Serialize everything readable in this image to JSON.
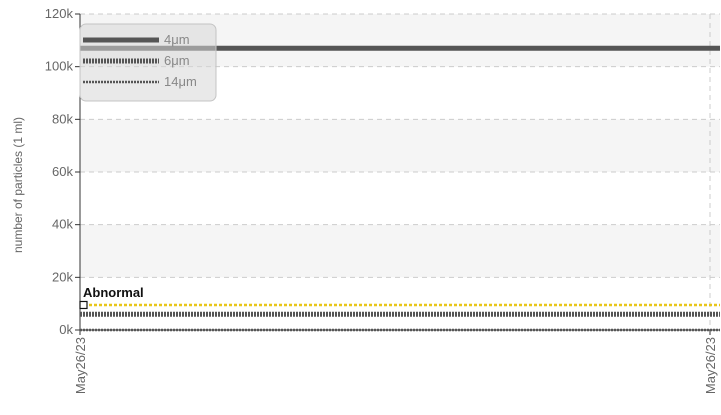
{
  "chart_data": {
    "type": "line",
    "title": "",
    "ylabel": "number of particles (1 ml)",
    "xlabel": "",
    "ylim": [
      0,
      120000
    ],
    "yticks": [
      0,
      20000,
      40000,
      60000,
      80000,
      100000,
      120000
    ],
    "ytick_labels": [
      "0k",
      "20k",
      "40k",
      "60k",
      "80k",
      "100k",
      "120k"
    ],
    "x": [
      "May26/23",
      "May26/23"
    ],
    "xtick_labels": [
      "May26/23",
      "May26/23"
    ],
    "grid": true,
    "banded_background": true,
    "legend_position": "top-left",
    "series": [
      {
        "name": "4μm",
        "values": [
          107000,
          107000
        ],
        "color": "#555555",
        "style": "solid"
      },
      {
        "name": "6μm",
        "values": [
          6000,
          6000
        ],
        "color": "#555555",
        "style": "dotted-thick"
      },
      {
        "name": "14μm",
        "values": [
          0,
          0
        ],
        "color": "#555555",
        "style": "dotted-thin"
      }
    ],
    "annotations": [
      {
        "label": "Abnormal",
        "value": 9500,
        "color": "#e8c619",
        "style": "dashed"
      }
    ]
  }
}
